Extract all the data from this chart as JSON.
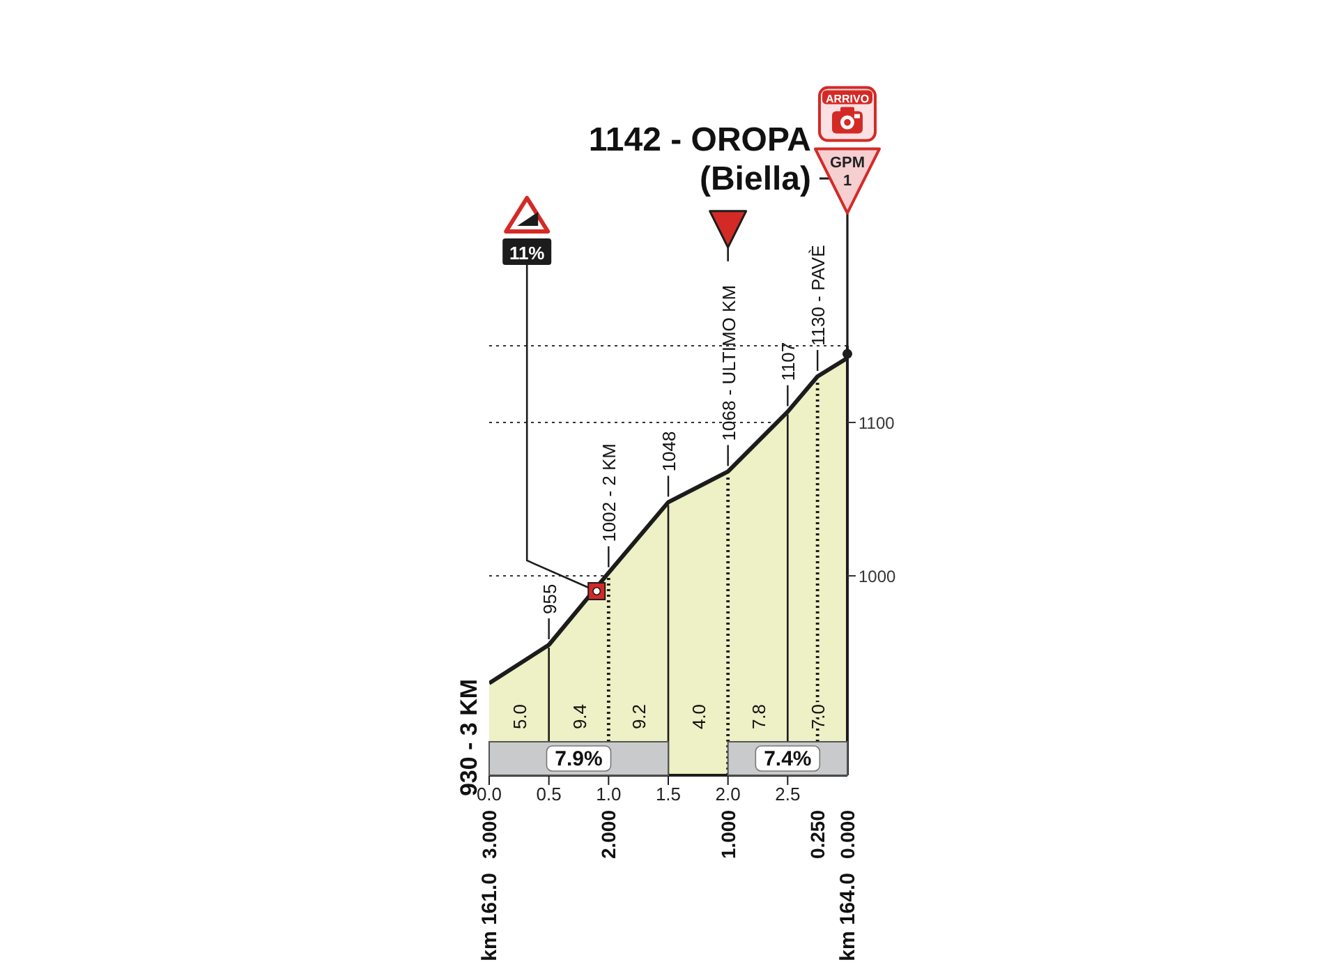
{
  "chart_data": {
    "type": "area",
    "x": [
      0,
      0.5,
      1,
      1.5,
      2,
      2.5,
      2.75,
      3
    ],
    "values": [
      930,
      955,
      1002,
      1048,
      1068,
      1107,
      1130,
      1142
    ],
    "color": "#eef0c5",
    "value_labels": [
      "930 - 3 KM",
      "955",
      "1002 - 2 KM",
      "1048",
      "1068 - ULTIMO KM",
      "1107",
      "1130 - PAVÈ",
      "1142 - OROPA\n(Biella)"
    ],
    "xlim": [
      0,
      3
    ],
    "xticks": [
      {
        "value": 0,
        "label": "0.0"
      },
      0.5,
      {
        "value": 1,
        "label": "1.0"
      },
      1.5,
      {
        "value": 2,
        "label": "2.0"
      },
      2.5
    ],
    "x2lim": [
      3,
      0
    ],
    "x2ticks": [
      {
        "value": 3,
        "label": "3.000"
      },
      {
        "value": 2,
        "label": "2.000"
      },
      {
        "value": 1,
        "label": "1.000"
      },
      {
        "value": 0.25,
        "label": "0.250"
      },
      {
        "value": 0,
        "label": "0.000"
      }
    ],
    "ylim": [
      870,
      1150
    ],
    "yticks": [
      1000,
      1100
    ],
    "grid": "y",
    "ref_lines": [
      {
        "axis": "x",
        "value": 0.5,
        "line_style": "solid"
      },
      {
        "axis": "x",
        "value": 1,
        "line_style": "dotted"
      },
      {
        "axis": "x",
        "value": 1.5,
        "line_style": "solid"
      },
      {
        "axis": "x",
        "value": 2,
        "line_style": "dotted"
      },
      {
        "axis": "x",
        "value": 2.5,
        "line_style": "solid"
      },
      {
        "axis": "x",
        "value": 2.75,
        "line_style": "dotted"
      }
    ],
    "bands": [
      {
        "axis": "x",
        "from": 0,
        "to": 1.5,
        "label": "7.9%",
        "color": "#c9cacb"
      },
      {
        "axis": "x",
        "from": 2,
        "to": 3,
        "label": "7.4%",
        "color": "#c9cacb"
      }
    ],
    "annotations": [
      "5.0",
      "9.4",
      "9.2",
      "4.0",
      "7.8",
      "7.0",
      "ARRIVO",
      "GPM 1",
      "km 161.0",
      "km 164.0",
      {
        "text": "11%",
        "x": 0.9,
        "y": 990
      }
    ]
  }
}
